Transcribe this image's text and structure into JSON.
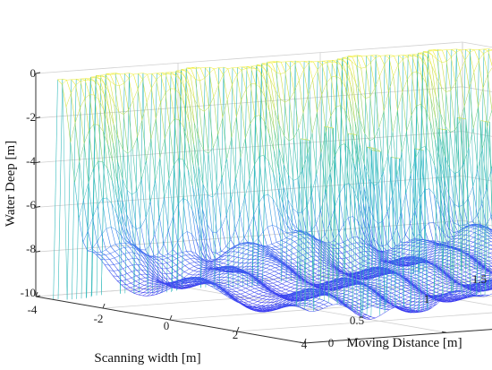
{
  "chart_data": {
    "type": "surface3d",
    "title": "",
    "xlabel": "Scanning width [m]",
    "ylabel": "Moving Distance [m]",
    "zlabel": "Water Deep [m]",
    "xlim": [
      -4,
      4
    ],
    "ylim": [
      0,
      1.5
    ],
    "zlim": [
      -10,
      0
    ],
    "xticks": [
      "-4",
      "-2",
      "0",
      "2",
      "4"
    ],
    "yticks": [
      "0",
      "0.5",
      "1",
      "1.5"
    ],
    "zticks": [
      "0",
      "-2",
      "-4",
      "-6",
      "-8",
      "-10"
    ],
    "grid": true,
    "colormap": [
      "#3b3bf0",
      "#3d7ff0",
      "#2fb7c9",
      "#55c98a",
      "#b9d84c",
      "#f5f03c"
    ],
    "surface": {
      "description_points": [
        {
          "x": -4,
          "y": 0.0,
          "z": -10
        },
        {
          "x": -3.6,
          "y": 0.0,
          "z": 0
        },
        {
          "x": -2.6,
          "y": 0.0,
          "z": -7.8
        },
        {
          "x": 0,
          "y": 0.0,
          "z": -8.5
        },
        {
          "x": 4,
          "y": 0.0,
          "z": -8.8
        },
        {
          "x": -3.6,
          "y": 1.5,
          "z": 0
        },
        {
          "x": 4,
          "y": 1.5,
          "z": -8.0
        }
      ],
      "spikes_x": [
        3.5,
        4.0
      ],
      "spike_top_z": 0
    }
  }
}
